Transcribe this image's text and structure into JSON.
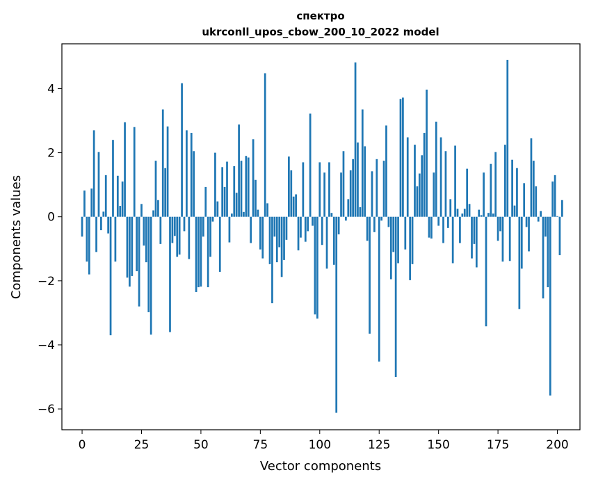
{
  "chart_data": {
    "type": "bar",
    "title_lines": [
      "спектро",
      "ukrconll_upos_cbow_200_10_2022 model"
    ],
    "xlabel": "Vector components",
    "ylabel": "Components values",
    "xlim": [
      -8.5,
      209.5
    ],
    "ylim": [
      -6.65,
      5.4
    ],
    "xticks": [
      0,
      25,
      50,
      75,
      100,
      125,
      150,
      175,
      200
    ],
    "xtick_labels": [
      "0",
      "25",
      "50",
      "75",
      "100",
      "125",
      "150",
      "175",
      "200"
    ],
    "yticks": [
      -6,
      -4,
      -2,
      0,
      2,
      4
    ],
    "ytick_labels": [
      "−6",
      "−4",
      "−2",
      "0",
      "2",
      "4"
    ],
    "grid": false,
    "bar_color": "#1f77b4",
    "values": [
      -0.62,
      0.82,
      -1.4,
      -1.8,
      0.88,
      2.7,
      -1.1,
      2.02,
      -0.42,
      0.16,
      1.3,
      -0.52,
      -3.7,
      2.4,
      -1.4,
      1.28,
      0.34,
      1.1,
      2.95,
      -1.9,
      -2.18,
      -1.85,
      2.8,
      -1.7,
      -2.8,
      0.4,
      -0.9,
      -1.42,
      -2.98,
      -3.68,
      0.2,
      1.75,
      0.52,
      -0.85,
      3.35,
      1.52,
      2.82,
      -3.6,
      -0.82,
      -0.6,
      -1.25,
      -1.18,
      4.17,
      -0.45,
      2.7,
      -1.32,
      2.62,
      2.05,
      -2.35,
      -2.2,
      -2.18,
      -0.62,
      0.93,
      -2.2,
      -1.25,
      -0.15,
      2.0,
      0.48,
      -1.72,
      1.55,
      0.93,
      1.72,
      -0.8,
      0.1,
      1.58,
      0.75,
      2.88,
      1.75,
      0.15,
      1.9,
      1.85,
      -0.82,
      2.42,
      1.15,
      0.22,
      -1.02,
      -1.3,
      4.48,
      0.42,
      -1.48,
      -2.7,
      -0.62,
      -1.42,
      -0.95,
      -1.88,
      -1.35,
      -0.72,
      1.88,
      1.45,
      0.63,
      0.7,
      -1.05,
      -0.65,
      1.7,
      -0.78,
      -0.45,
      3.22,
      -0.28,
      -3.05,
      -3.18,
      1.7,
      -0.88,
      1.38,
      -1.62,
      1.7,
      0.12,
      -1.5,
      -6.12,
      -0.55,
      1.38,
      2.05,
      -0.12,
      0.55,
      1.45,
      1.8,
      4.82,
      2.32,
      0.3,
      3.35,
      2.2,
      -0.75,
      -3.65,
      1.42,
      -0.48,
      1.8,
      -4.52,
      -0.12,
      1.75,
      2.85,
      -0.32,
      -1.95,
      -1.1,
      -5.0,
      -1.45,
      3.68,
      3.72,
      -1.02,
      2.48,
      -1.98,
      -1.48,
      2.25,
      0.95,
      1.35,
      1.92,
      2.62,
      3.97,
      -0.65,
      -0.68,
      1.38,
      2.97,
      -0.28,
      2.48,
      -0.82,
      2.05,
      -0.35,
      0.55,
      -1.45,
      2.22,
      0.25,
      -0.82,
      0.1,
      0.25,
      1.5,
      0.4,
      -1.3,
      -0.85,
      -1.58,
      0.22,
      0.05,
      1.38,
      -3.42,
      0.12,
      1.65,
      0.1,
      2.02,
      -0.75,
      -0.45,
      -1.4,
      2.25,
      4.9,
      -1.38,
      1.78,
      0.35,
      1.52,
      -2.88,
      -1.62,
      1.05,
      -0.32,
      -1.08,
      2.45,
      1.75,
      0.95,
      -0.15,
      0.18,
      -2.55,
      -0.62,
      -2.2,
      -5.58,
      1.1,
      1.3,
      0.02,
      -1.2,
      0.52
    ]
  }
}
